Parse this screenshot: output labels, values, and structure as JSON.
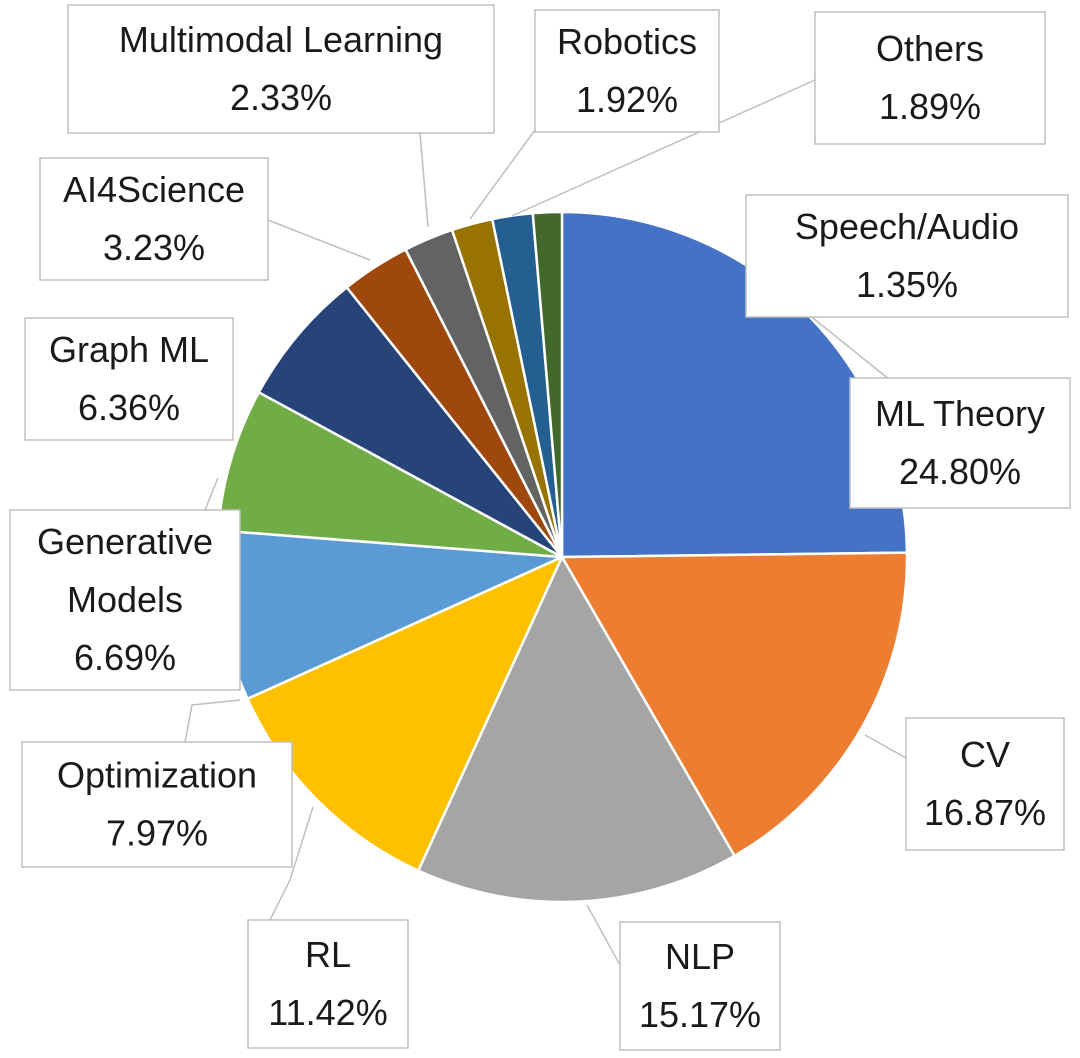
{
  "chart_data": {
    "type": "pie",
    "title": "",
    "slices": [
      {
        "label": "ML Theory",
        "value": 24.8,
        "display": "24.80%",
        "color": "#4472C4"
      },
      {
        "label": "CV",
        "value": 16.87,
        "display": "16.87%",
        "color": "#ED7D31"
      },
      {
        "label": "NLP",
        "value": 15.17,
        "display": "15.17%",
        "color": "#A5A5A5"
      },
      {
        "label": "RL",
        "value": 11.42,
        "display": "11.42%",
        "color": "#FFC000"
      },
      {
        "label": "Optimization",
        "value": 7.97,
        "display": "7.97%",
        "color": "#5B9BD5"
      },
      {
        "label": "Generative Models",
        "value": 6.69,
        "display": "6.69%",
        "color": "#70AD47"
      },
      {
        "label": "Graph ML",
        "value": 6.36,
        "display": "6.36%",
        "color": "#264478"
      },
      {
        "label": "AI4Science",
        "value": 3.23,
        "display": "3.23%",
        "color": "#9E480E"
      },
      {
        "label": "Multimodal Learning",
        "value": 2.33,
        "display": "2.33%",
        "color": "#636363"
      },
      {
        "label": "Robotics",
        "value": 1.92,
        "display": "1.92%",
        "color": "#997300"
      },
      {
        "label": "Others",
        "value": 1.89,
        "display": "1.89%",
        "color": "#255E91"
      },
      {
        "label": "Speech/Audio",
        "value": 1.35,
        "display": "1.35%",
        "color": "#43682B"
      }
    ]
  }
}
